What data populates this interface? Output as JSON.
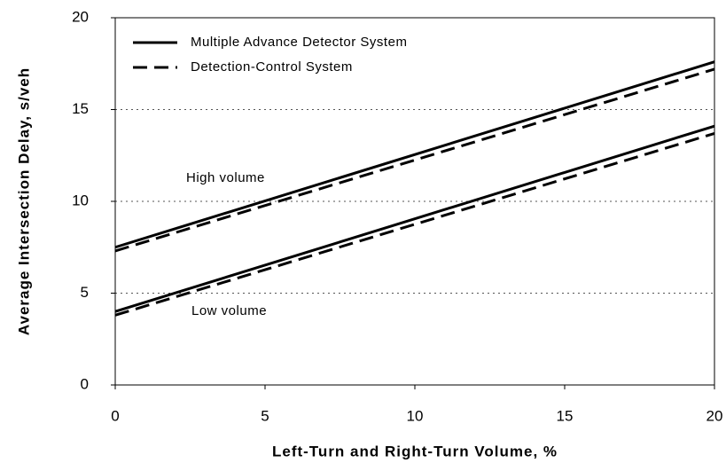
{
  "chart_data": {
    "type": "line",
    "xlabel": "Left-Turn and Right-Turn Volume, %",
    "ylabel": "Average Intersection Delay, s/veh",
    "x": [
      0,
      20
    ],
    "series": [
      {
        "name": "Multiple Advance Detector System",
        "color": "#000000",
        "style": "solid",
        "values": [
          7.5,
          17.6
        ]
      },
      {
        "name": "Detection-Control System",
        "color": "#000000",
        "style": "dashed",
        "values": [
          7.3,
          17.2
        ]
      },
      {
        "name": "Multiple Advance Detector System",
        "color": "#000000",
        "style": "solid",
        "values": [
          4.0,
          14.1
        ]
      },
      {
        "name": "Detection-Control System",
        "color": "#000000",
        "style": "dashed",
        "values": [
          3.8,
          13.7
        ]
      }
    ],
    "annotations": [
      "High volume",
      "Low volume"
    ],
    "xlim": [
      0,
      20
    ],
    "xticks": [
      0,
      5,
      10,
      15,
      20
    ],
    "ylim": [
      0,
      20
    ],
    "yticks": [
      0,
      5,
      10,
      15,
      20
    ],
    "grid": true,
    "legend": "upper left"
  }
}
